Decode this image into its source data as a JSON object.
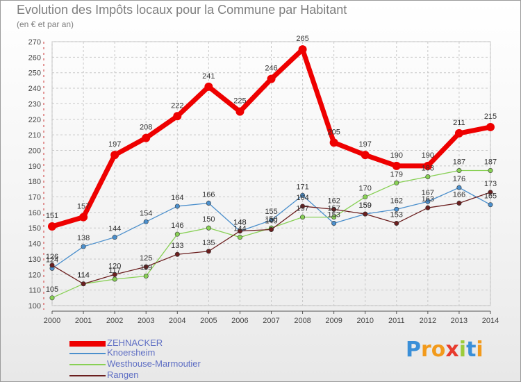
{
  "header": {
    "title": "Evolution des Impôts locaux pour la Commune par Habitant",
    "subtitle": "(en € et par an)"
  },
  "logo": {
    "text": "Proxiti"
  },
  "chart_data": {
    "type": "line",
    "x": [
      2000,
      2001,
      2002,
      2003,
      2004,
      2005,
      2006,
      2007,
      2008,
      2009,
      2010,
      2011,
      2012,
      2013,
      2014
    ],
    "ylim": [
      100,
      270
    ],
    "yticks": [
      100,
      110,
      120,
      130,
      140,
      150,
      160,
      170,
      180,
      190,
      200,
      210,
      220,
      230,
      240,
      250,
      260,
      270
    ],
    "grid": true,
    "legend_position": "bottom-left",
    "series": [
      {
        "name": "ZEHNACKER",
        "color": "#ee0000",
        "values": [
          151,
          157,
          197,
          208,
          222,
          241,
          225,
          246,
          265,
          205,
          197,
          190,
          190,
          211,
          215
        ]
      },
      {
        "name": "Knoersheim",
        "color": "#4b8fcc",
        "values": [
          124,
          138,
          144,
          154,
          164,
          166,
          148,
          155,
          171,
          153,
          159,
          162,
          167,
          176,
          165
        ]
      },
      {
        "name": "Westhouse-Marmoutier",
        "color": "#88d055",
        "values": [
          105,
          114,
          117,
          119,
          146,
          150,
          144,
          150,
          157,
          157,
          170,
          179,
          183,
          187,
          187
        ]
      },
      {
        "name": "Rangen",
        "color": "#6b1f1f",
        "values": [
          126,
          114,
          120,
          125,
          133,
          135,
          148,
          149,
          164,
          162,
          159,
          153,
          163,
          166,
          173
        ]
      }
    ]
  }
}
